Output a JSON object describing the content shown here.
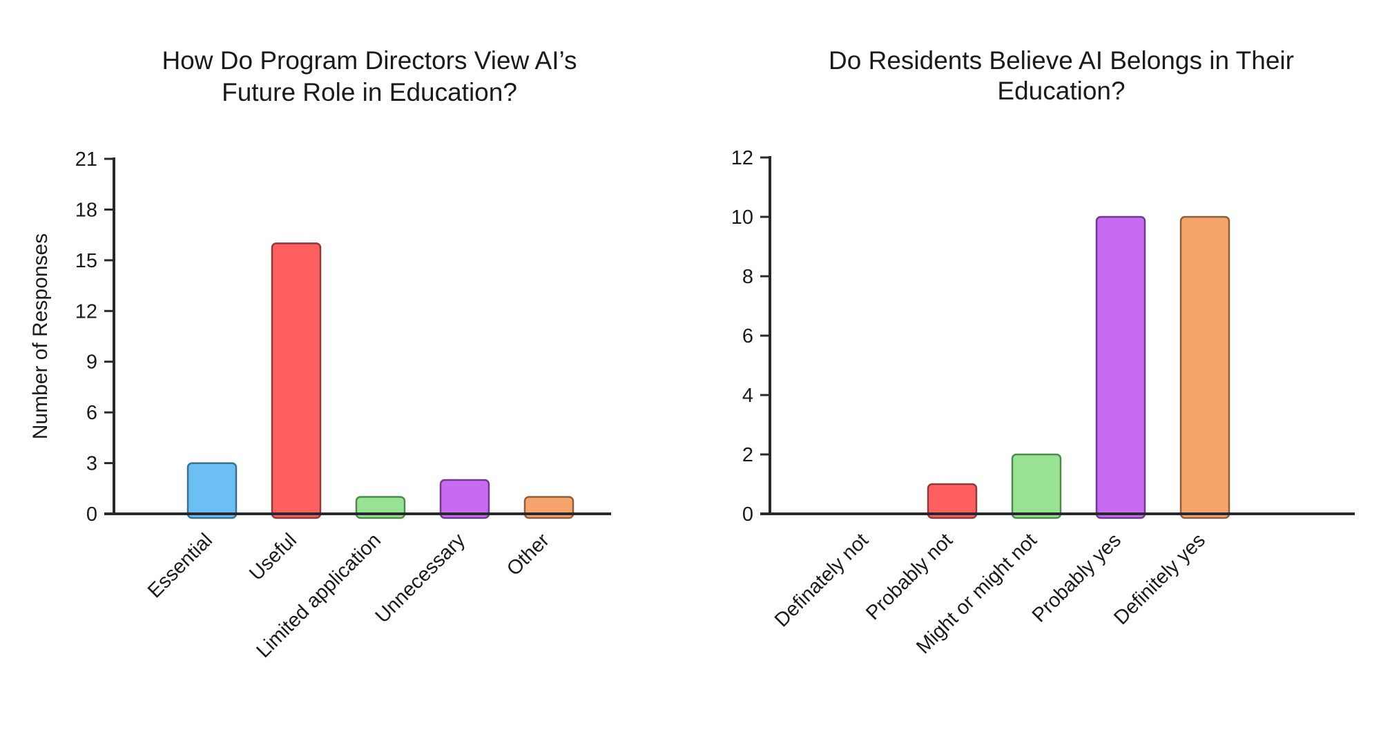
{
  "chart_data": [
    {
      "type": "bar",
      "title_lines": [
        "How Do Program Directors View AI’s",
        "Future Role in Education?"
      ],
      "ylabel": "Number of Responses",
      "xlabel": "",
      "ylim": [
        0,
        21
      ],
      "yticks": [
        0,
        3,
        6,
        9,
        12,
        15,
        18,
        21
      ],
      "categories": [
        "Essential",
        "Useful",
        "Limited application",
        "Unnecessary",
        "Other"
      ],
      "values": [
        3,
        16,
        1,
        2,
        1
      ],
      "colors": [
        "#6cbff2",
        "#ff5f5f",
        "#98e393",
        "#c86bf2",
        "#f5a46b"
      ],
      "edge_colors": [
        "#3a6f8e",
        "#8e3a3a",
        "#4e8a4b",
        "#6f3a8e",
        "#8e5f3a"
      ],
      "grid": false,
      "legend": "none"
    },
    {
      "type": "bar",
      "title_lines": [
        "Do Residents Believe AI Belongs in Their",
        "Education?"
      ],
      "ylabel": "",
      "xlabel": "",
      "ylim": [
        0,
        12
      ],
      "yticks": [
        0,
        2,
        4,
        6,
        8,
        10,
        12
      ],
      "categories": [
        "Definately not",
        "Probably not",
        "Might or might not",
        "Probably yes",
        "Definitely yes"
      ],
      "values": [
        0,
        1,
        2,
        10,
        10
      ],
      "colors": [
        "#6cbff2",
        "#ff5f5f",
        "#98e393",
        "#c86bf2",
        "#f5a46b"
      ],
      "edge_colors": [
        "#3a6f8e",
        "#8e3a3a",
        "#4e8a4b",
        "#6f3a8e",
        "#8e5f3a"
      ],
      "grid": false,
      "legend": "none"
    }
  ]
}
